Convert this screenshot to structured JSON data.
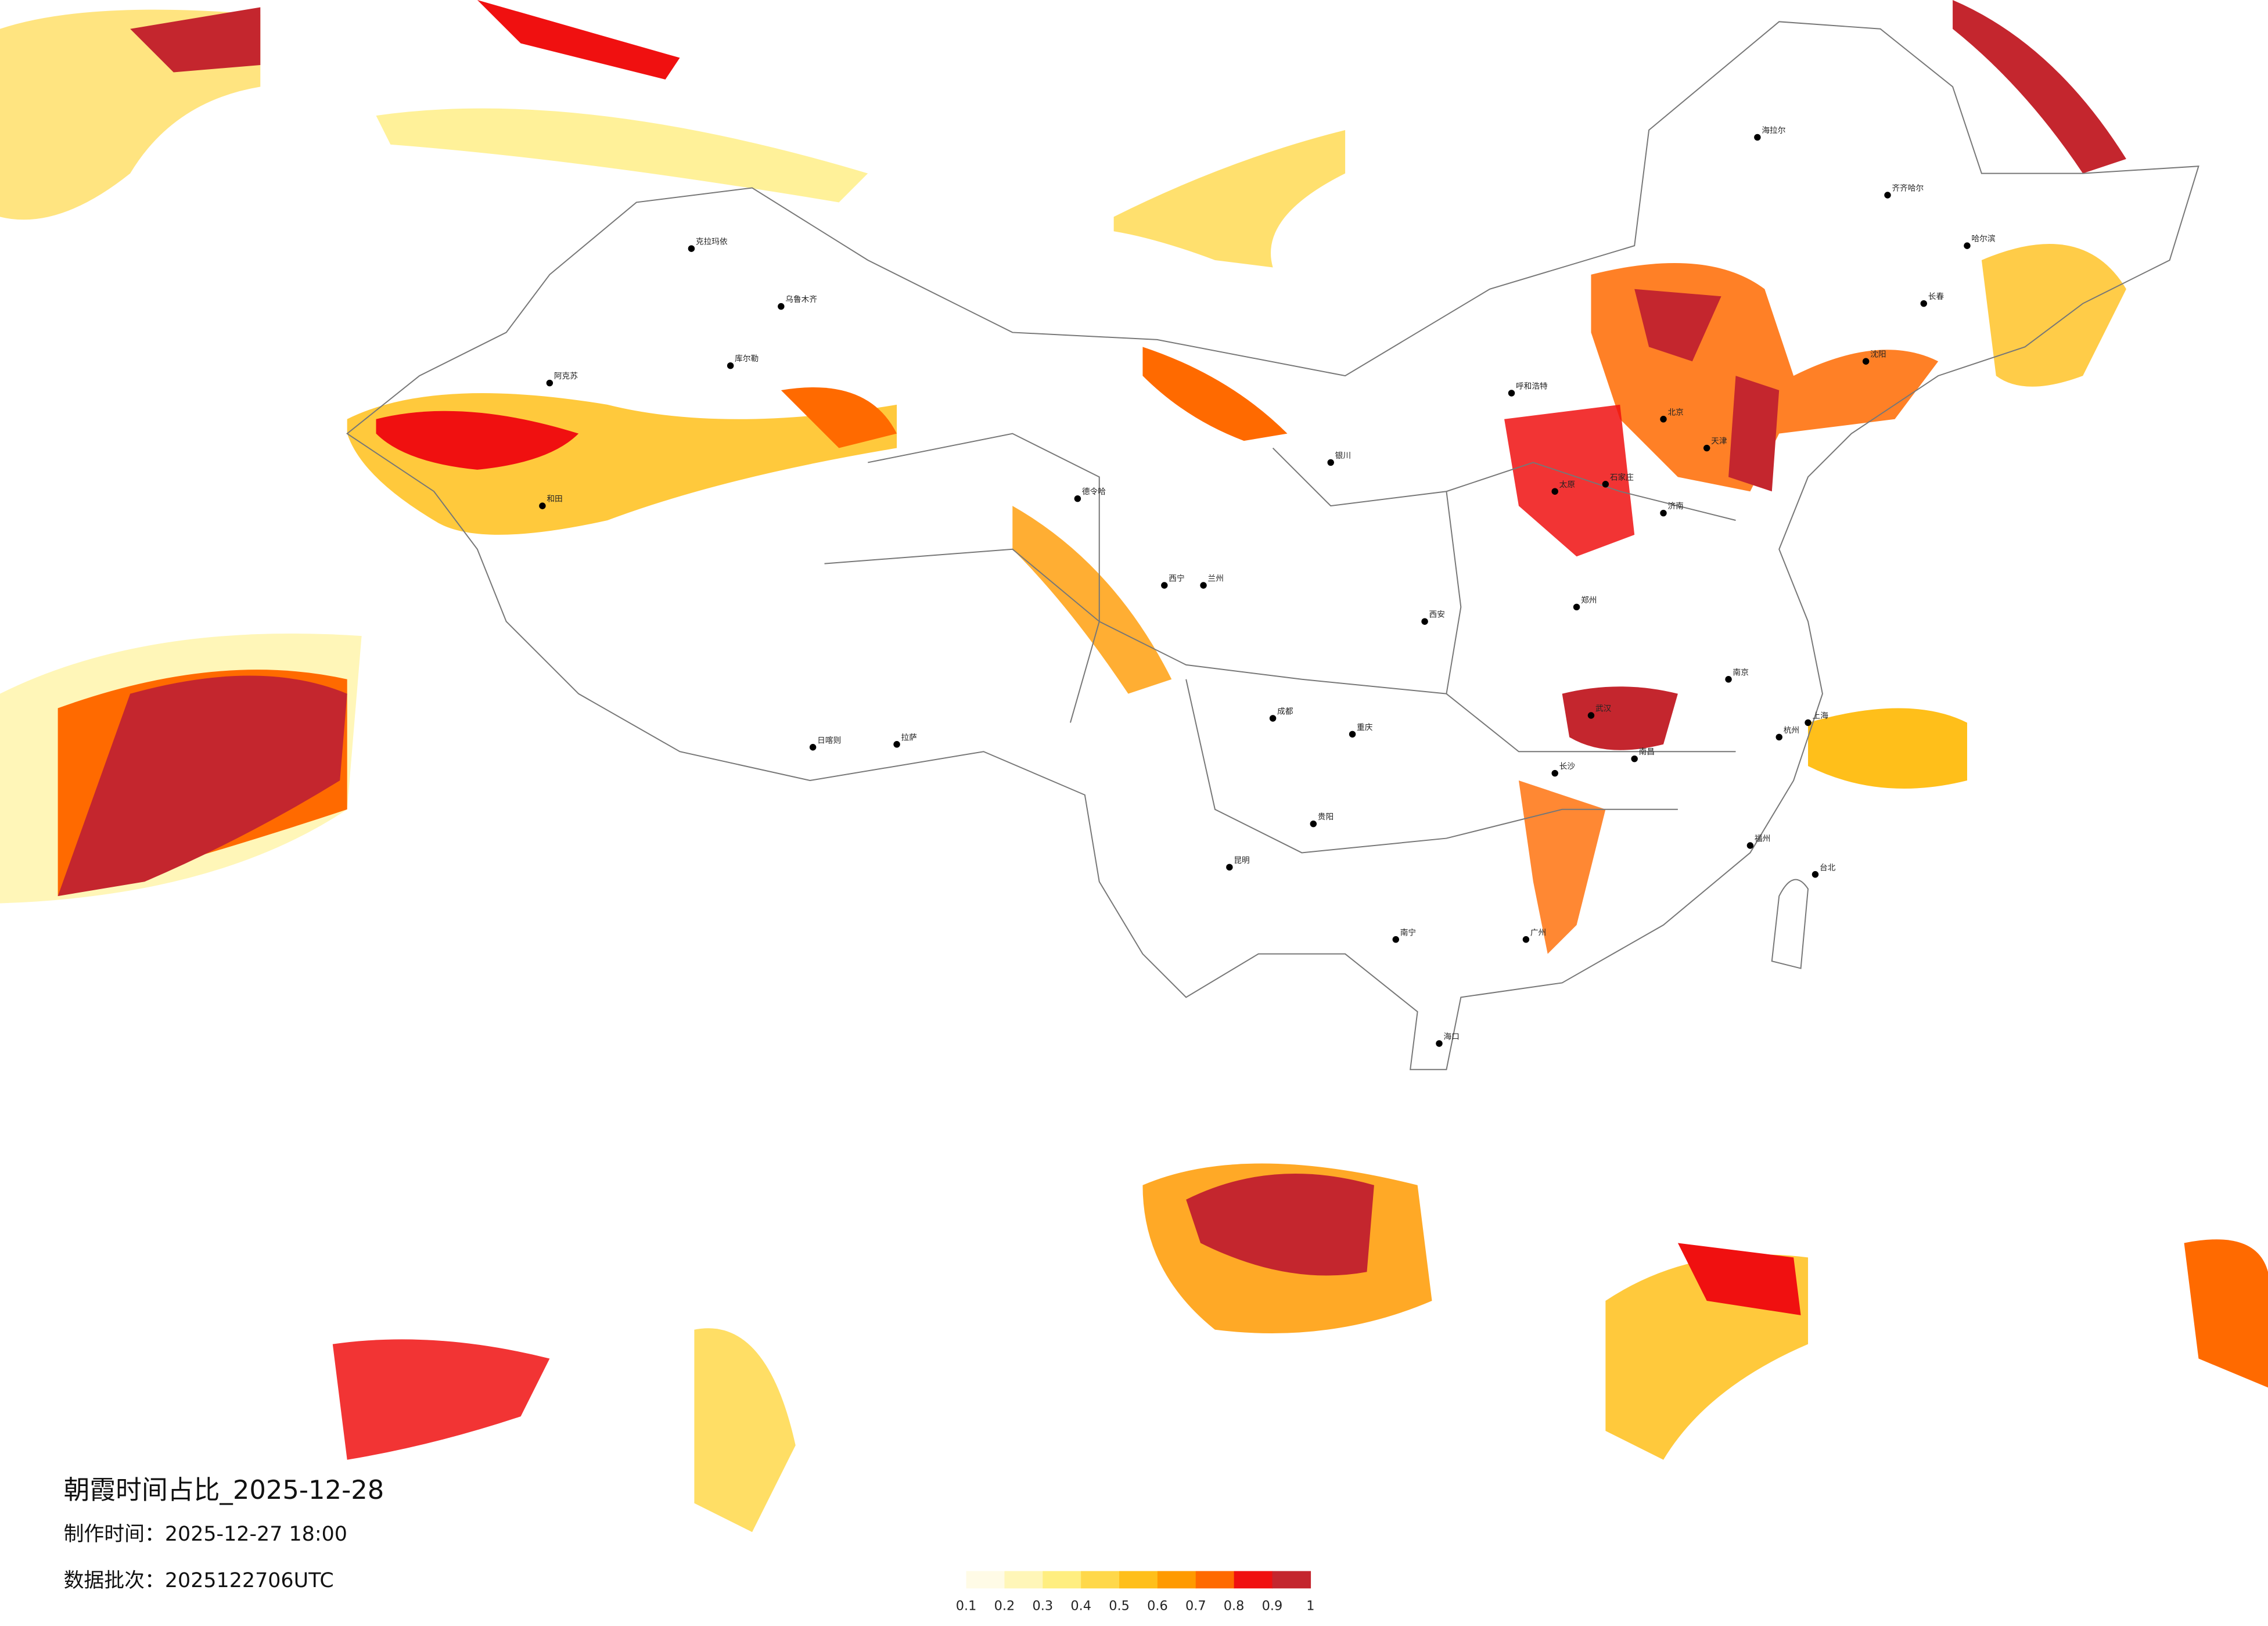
{
  "map": {
    "title": "朝霞时间占比_2025-12-28",
    "made_time": "制作时间：2025-12-27 18:00",
    "batch": "数据批次：2025122706UTC",
    "legend": {
      "ticks": [
        0.1,
        0.2,
        0.3,
        0.4,
        0.5,
        0.6,
        0.7,
        0.8,
        0.9,
        1
      ],
      "colors": [
        "#fffbe6",
        "#fff6b8",
        "#ffee80",
        "#ffd84a",
        "#ffbf1a",
        "#ff9a00",
        "#ff6a00",
        "#f01010",
        "#c4262e"
      ]
    },
    "cities": [
      "海拉尔",
      "齐齐哈尔",
      "哈尔滨",
      "长春",
      "沈阳",
      "克拉玛依",
      "乌鲁木齐",
      "库尔勒",
      "阿克苏",
      "和田",
      "德令哈",
      "日喀则",
      "拉萨",
      "呼和浩特",
      "银川",
      "兰州",
      "西宁",
      "成都",
      "重庆",
      "贵阳",
      "昆明",
      "南宁",
      "广州",
      "海口",
      "台北",
      "上海",
      "武汉",
      "长沙",
      "南昌",
      "福州",
      "杭州",
      "南京",
      "郑州",
      "济南",
      "西安",
      "太原",
      "石家庄",
      "天津",
      "北京"
    ]
  }
}
